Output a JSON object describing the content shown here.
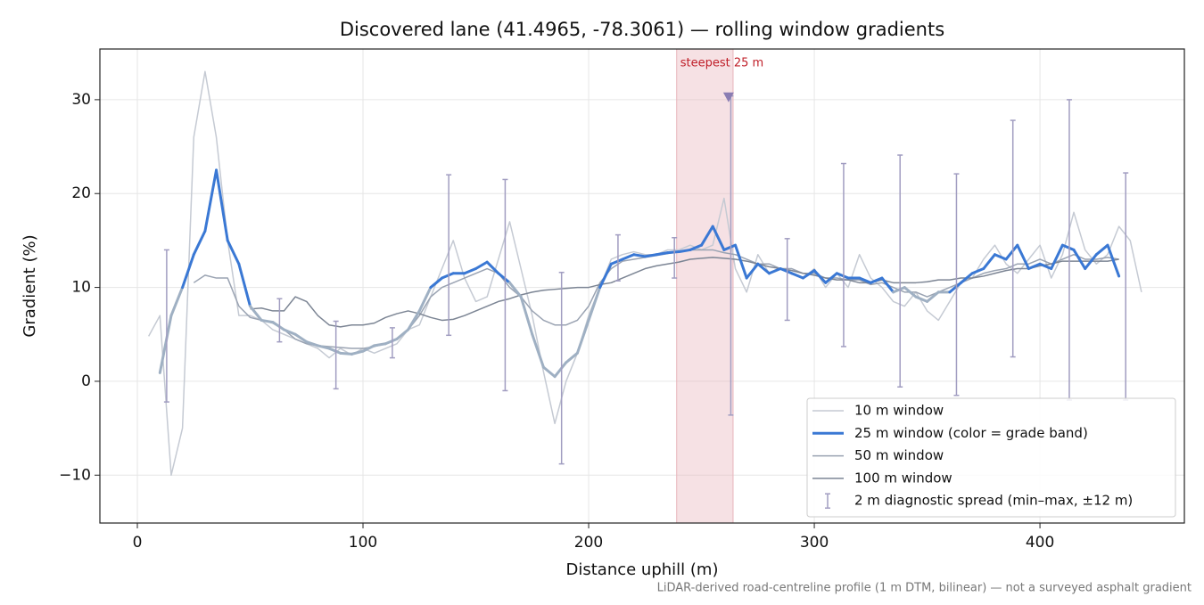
{
  "chart_data": {
    "type": "line",
    "title": "Discovered lane (41.4965, -78.3061) — rolling window gradients",
    "xlabel": "Distance uphill (m)",
    "ylabel": "Gradient (%)",
    "footnote": "LiDAR-derived road-centreline profile (1 m DTM, bilinear) — not a surveyed asphalt gradient",
    "xlim": [
      -16.6,
      464
    ],
    "ylim": [
      -15.1,
      35.4
    ],
    "xticks": [
      0,
      100,
      200,
      300,
      400
    ],
    "yticks": [
      {
        "value": -10,
        "label": "−10"
      },
      0,
      10,
      20,
      30
    ],
    "grid": true,
    "legend": "lower right",
    "x": [
      5,
      10,
      15,
      20,
      25,
      30,
      35,
      40,
      45,
      50,
      55,
      60,
      65,
      70,
      75,
      80,
      85,
      90,
      95,
      100,
      105,
      110,
      115,
      120,
      125,
      130,
      135,
      140,
      145,
      150,
      155,
      160,
      165,
      170,
      175,
      180,
      185,
      190,
      195,
      200,
      205,
      210,
      215,
      220,
      225,
      230,
      235,
      240,
      245,
      250,
      255,
      260,
      265,
      270,
      275,
      280,
      285,
      290,
      295,
      300,
      305,
      310,
      315,
      320,
      325,
      330,
      335,
      340,
      345,
      350,
      355,
      360,
      365,
      370,
      375,
      380,
      385,
      390,
      395,
      400,
      405,
      410,
      415,
      420,
      425,
      430,
      435,
      440,
      445
    ],
    "series": [
      {
        "name": "10 m window",
        "color": "#c5cad3",
        "width": 1.5,
        "values": [
          4.8,
          7,
          -10,
          -5,
          26,
          33,
          26,
          15,
          7,
          7,
          6.5,
          5.5,
          5,
          4.5,
          4,
          3.5,
          2.5,
          3.5,
          2.8,
          3.5,
          3,
          3.5,
          4,
          5.5,
          6,
          9,
          12,
          15,
          11,
          8.5,
          9,
          13,
          17,
          12,
          7,
          1,
          -4.5,
          0,
          3,
          7,
          10,
          13,
          13.5,
          13.8,
          13.5,
          13.5,
          14,
          14,
          14.5,
          14,
          14.5,
          19.5,
          12,
          9.5,
          13.5,
          11.5,
          12,
          11.5,
          11,
          12,
          10,
          11.5,
          10,
          13.5,
          11,
          10,
          8.5,
          8,
          9.5,
          7.5,
          6.5,
          8.5,
          10.5,
          11,
          13,
          14.5,
          12.5,
          11.5,
          13,
          14.5,
          11,
          13.5,
          18,
          14,
          12.5,
          13.5,
          16.5,
          15,
          9.5
        ]
      },
      {
        "name": "25 m window (color = grade band)",
        "color": "#3a78d4",
        "width": 3,
        "band_limits": [
          10,
          20
        ],
        "band_colors": [
          "#9fb0c3",
          "#3a78d4",
          "#e08a0b"
        ],
        "values": [
          null,
          0.9,
          7,
          10,
          13.5,
          16,
          22.5,
          15,
          12.5,
          8,
          6.5,
          6.3,
          5.5,
          5,
          4.2,
          3.8,
          3.5,
          3,
          2.9,
          3.2,
          3.8,
          4,
          4.5,
          5.5,
          7.5,
          10,
          11,
          11.5,
          11.5,
          12,
          12.7,
          11.5,
          10.5,
          9,
          5,
          1.5,
          0.5,
          2,
          3,
          6.5,
          10,
          12.5,
          13,
          13.5,
          13.3,
          13.5,
          13.7,
          13.8,
          14,
          14.5,
          16.5,
          14,
          14.5,
          11,
          12.5,
          11.5,
          12,
          11.5,
          11,
          11.8,
          10.5,
          11.5,
          11,
          11,
          10.5,
          11,
          9.5,
          10,
          9,
          8.5,
          9.5,
          9.5,
          10.5,
          11.5,
          12,
          13.5,
          13,
          14.5,
          12,
          12.5,
          12,
          14.5,
          14,
          12,
          13.5,
          14.5,
          11.2,
          null,
          null
        ]
      },
      {
        "name": "50 m window",
        "color": "#9aa3b2",
        "width": 1.5,
        "values": [
          null,
          null,
          null,
          null,
          10.5,
          11.3,
          11,
          11,
          8,
          6.8,
          6.5,
          6.2,
          5.5,
          4.5,
          4,
          3.8,
          3.7,
          3.6,
          3.5,
          3.5,
          3.7,
          4,
          4.5,
          5.5,
          7,
          9,
          10,
          10.5,
          11,
          11.5,
          12,
          11.5,
          10,
          9,
          7.5,
          6.5,
          6,
          6,
          6.5,
          8,
          10.5,
          12,
          12.8,
          13,
          13.2,
          13.4,
          13.6,
          13.8,
          14,
          14,
          14,
          13.7,
          13.5,
          13,
          12.5,
          12.5,
          12,
          12,
          11.5,
          11.5,
          11,
          11,
          10.8,
          10.8,
          10.3,
          10.5,
          10,
          9.5,
          9.5,
          9,
          9.5,
          10,
          10.5,
          11,
          11.5,
          11.8,
          12,
          12.5,
          12.5,
          13,
          12.5,
          13,
          13.5,
          13,
          13,
          13.2,
          13,
          null,
          null
        ]
      },
      {
        "name": "100 m window",
        "color": "#7c8594",
        "width": 1.5,
        "values": [
          null,
          null,
          null,
          null,
          null,
          null,
          null,
          null,
          null,
          7.7,
          7.8,
          7.5,
          7.5,
          9,
          8.5,
          7,
          6,
          5.8,
          6,
          6,
          6.2,
          6.8,
          7.2,
          7.5,
          7.2,
          6.8,
          6.5,
          6.6,
          7,
          7.5,
          8,
          8.5,
          8.8,
          9.2,
          9.5,
          9.7,
          9.8,
          9.9,
          10,
          10,
          10.3,
          10.5,
          11,
          11.5,
          12,
          12.3,
          12.5,
          12.7,
          13,
          13.1,
          13.2,
          13.1,
          13,
          12.8,
          12.5,
          12.2,
          12,
          11.8,
          11.5,
          11.3,
          11,
          10.8,
          10.8,
          10.5,
          10.5,
          10.8,
          10.5,
          10.5,
          10.5,
          10.6,
          10.8,
          10.8,
          11,
          11,
          11.2,
          11.5,
          11.8,
          12,
          12,
          12.3,
          12.5,
          12.8,
          12.8,
          12.8,
          12.8,
          12.8,
          13,
          null,
          null
        ]
      }
    ],
    "spread": {
      "name": "2 m diagnostic spread (min–max, ±12 m)",
      "color": "#a19dc1",
      "x": [
        13,
        63,
        88,
        113,
        138,
        163,
        188,
        213,
        238,
        263,
        288,
        313,
        338,
        363,
        388,
        413,
        438
      ],
      "low": [
        -2.2,
        4.2,
        -0.8,
        2.5,
        4.9,
        -1,
        -8.8,
        10.7,
        11,
        -3.6,
        6.5,
        3.7,
        -0.6,
        -1.5,
        2.6,
        -2,
        -2
      ],
      "high": [
        14,
        8.8,
        6.4,
        5.7,
        22,
        21.5,
        11.6,
        15.6,
        15.3,
        30.4,
        15.2,
        23.2,
        24.1,
        22.1,
        27.8,
        30,
        22.2
      ]
    },
    "steepest": {
      "label": "steepest 25 m",
      "span": [
        239,
        264
      ],
      "color": "#e8b4bb",
      "text_color": "#c0202a",
      "marker": {
        "x": 262,
        "y": 30.3,
        "color": "#8a7db3"
      }
    }
  }
}
